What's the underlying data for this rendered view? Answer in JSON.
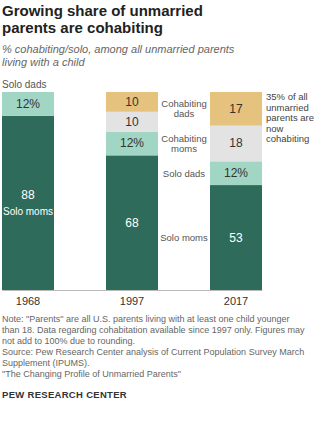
{
  "chart_data": {
    "type": "bar",
    "stacked": true,
    "title": "Growing share of unmarried parents are cohabiting",
    "subtitle": "% cohabiting/solo, among all unmarried parents living with a child",
    "categories": [
      "1968",
      "1997",
      "2017"
    ],
    "series": [
      {
        "name": "Solo moms",
        "color": "#2f6b5b",
        "values": [
          88,
          68,
          53
        ]
      },
      {
        "name": "Solo dads",
        "color": "#a1d6c4",
        "values": [
          12,
          12,
          12
        ],
        "value_labels": [
          "12%",
          "12%",
          "12%"
        ]
      },
      {
        "name": "Cohabiting moms",
        "color": "#e3e3e3",
        "values": [
          null,
          10,
          18
        ]
      },
      {
        "name": "Cohabiting dads",
        "color": "#e5c27d",
        "values": [
          null,
          10,
          17
        ]
      }
    ],
    "ylim": [
      0,
      100
    ],
    "tick_labels": "x",
    "data_labels": true,
    "annotations": [
      "35% of all unmarried parents are now cohabiting"
    ],
    "note": "Note: \"Parents\" are all U.S. parents living with at least one child younger than 18. Data regarding cohabitation available since 1997 only. Figures may not add to 100% due to rounding.",
    "source": "Source: Pew Research Center analysis of Current Population Survey March Supplement (IPUMS).",
    "report": "\"The Changing Profile of Unmarried Parents\"",
    "credit": "PEW RESEARCH CENTER"
  }
}
